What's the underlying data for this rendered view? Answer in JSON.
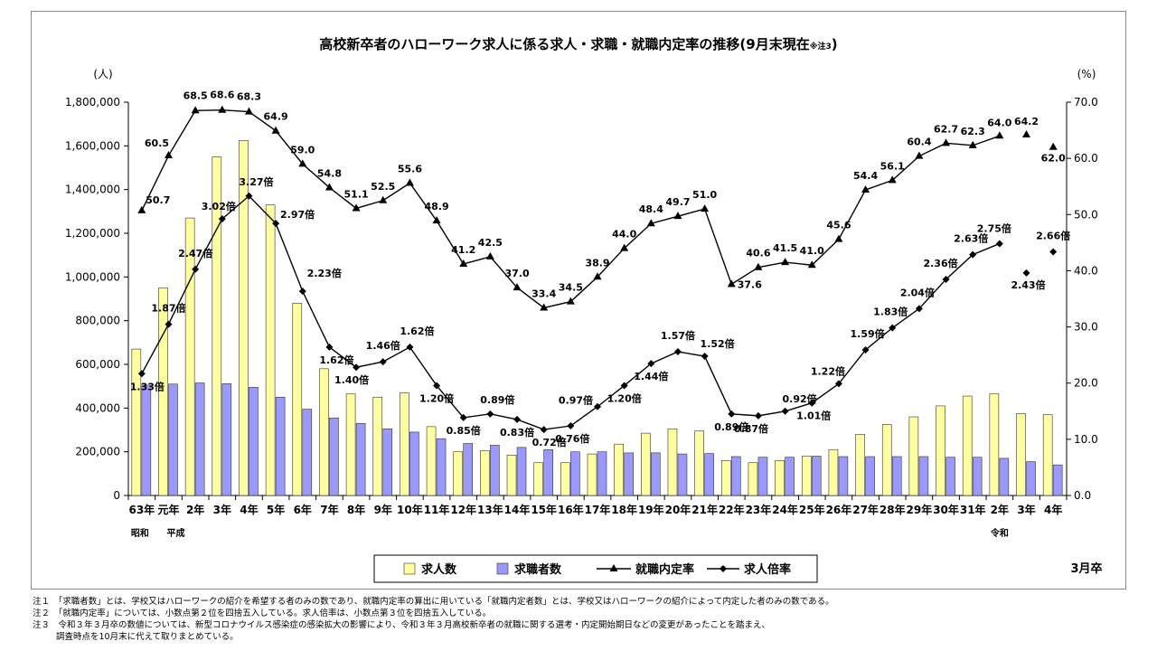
{
  "chart_data": {
    "type": "bar+line",
    "title": "高校新卒者のハローワーク求人に係る求人・求職・就職内定率の推移(9月末現在",
    "title_note": "※注3",
    "title_close": ")",
    "ylabel_left": "(人)",
    "ylabel_right": "(%)",
    "ylim_left": [
      0,
      1800000
    ],
    "ylim_right": [
      0,
      70
    ],
    "yticks_left": [
      "1,800,000",
      "1,600,000",
      "1,400,000",
      "1,200,000",
      "1,000,000",
      "800,000",
      "600,000",
      "400,000",
      "200,000",
      "0"
    ],
    "yticks_right": [
      "70.0",
      "60.0",
      "50.0",
      "40.0",
      "30.0",
      "20.0",
      "10.0",
      "0.0"
    ],
    "categories": [
      "63年",
      "元年",
      "2年",
      "3年",
      "4年",
      "5年",
      "6年",
      "7年",
      "8年",
      "9年",
      "10年",
      "11年",
      "12年",
      "13年",
      "14年",
      "15年",
      "16年",
      "17年",
      "18年",
      "19年",
      "20年",
      "21年",
      "22年",
      "23年",
      "24年",
      "25年",
      "26年",
      "27年",
      "28年",
      "29年",
      "30年",
      "31年",
      "2年",
      "3年",
      "4年"
    ],
    "era_labels": [
      {
        "label": "昭和",
        "at": 0
      },
      {
        "label": "平成",
        "at": 1
      },
      {
        "label": "令和",
        "at": 32
      }
    ],
    "xlabel_right": "3月卒",
    "series": [
      {
        "name": "求人数",
        "kind": "bar",
        "color": "#ffffa0",
        "values": [
          670000,
          950000,
          1270000,
          1550000,
          1625000,
          1330000,
          880000,
          580000,
          465000,
          450000,
          470000,
          315000,
          200000,
          205000,
          185000,
          150000,
          150000,
          190000,
          235000,
          285000,
          305000,
          295000,
          160000,
          150000,
          160000,
          180000,
          210000,
          280000,
          325000,
          360000,
          410000,
          455000,
          465000,
          375000,
          370000
        ]
      },
      {
        "name": "求職者数",
        "kind": "bar",
        "color": "#9999ff",
        "values": [
          505000,
          510000,
          515000,
          512000,
          495000,
          450000,
          395000,
          355000,
          330000,
          305000,
          290000,
          260000,
          238000,
          230000,
          220000,
          210000,
          200000,
          200000,
          195000,
          195000,
          190000,
          192000,
          178000,
          175000,
          175000,
          180000,
          178000,
          178000,
          178000,
          178000,
          175000,
          175000,
          170000,
          155000,
          140000
        ]
      },
      {
        "name": "就職内定率",
        "kind": "line",
        "marker": "triangle",
        "values": [
          50.7,
          60.5,
          68.5,
          68.6,
          68.3,
          64.9,
          59.0,
          54.8,
          51.1,
          52.5,
          55.6,
          48.9,
          41.2,
          42.5,
          37.0,
          33.4,
          34.5,
          38.9,
          44.0,
          48.4,
          49.7,
          51.0,
          37.6,
          40.6,
          41.5,
          41.0,
          45.6,
          54.4,
          56.1,
          60.4,
          62.7,
          62.3,
          64.0,
          64.2,
          62.0
        ],
        "labels": [
          "50.7",
          "60.5",
          "68.5",
          "68.6",
          "68.3",
          "64.9",
          "59.0",
          "54.8",
          "51.1",
          "52.5",
          "55.6",
          "48.9",
          "41.2",
          "42.5",
          "37.0",
          "33.4",
          "34.5",
          "38.9",
          "44.0",
          "48.4",
          "49.7",
          "51.0",
          "37.6",
          "40.6",
          "41.5",
          "41.0",
          "45.6",
          "54.4",
          "56.1",
          "60.4",
          "62.7",
          "62.3",
          "64.0",
          "64.2",
          "62.0"
        ]
      },
      {
        "name": "求人倍率",
        "kind": "line",
        "marker": "diamond",
        "values": [
          1.33,
          1.87,
          2.47,
          3.02,
          3.27,
          2.97,
          2.23,
          1.62,
          1.4,
          1.46,
          1.62,
          1.2,
          0.85,
          0.89,
          0.83,
          0.72,
          0.76,
          0.97,
          1.2,
          1.44,
          1.57,
          1.52,
          0.89,
          0.87,
          0.92,
          1.01,
          1.22,
          1.59,
          1.83,
          2.04,
          2.36,
          2.63,
          2.75,
          2.43,
          2.66
        ],
        "labels": [
          "1.33倍",
          "1.87倍",
          "2.47倍",
          "3.02倍",
          "3.27倍",
          "2.97倍",
          "2.23倍",
          "1.62倍",
          "1.40倍",
          "1.46倍",
          "1.62倍",
          "1.20倍",
          "0.85倍",
          "0.89倍",
          "0.83倍",
          "0.72倍",
          "0.76倍",
          "0.97倍",
          "1.20倍",
          "1.44倍",
          "1.57倍",
          "1.52倍",
          "0.89倍",
          "0.87倍",
          "0.92倍",
          "1.01倍",
          "1.22倍",
          "1.59倍",
          "1.83倍",
          "2.04倍",
          "2.36倍",
          "2.63倍",
          "2.75倍",
          "2.43倍",
          "2.66倍"
        ]
      }
    ],
    "legend": [
      "求人数",
      "求職者数",
      "就職内定率",
      "求人倍率"
    ],
    "legend_position": "bottom"
  },
  "notes": [
    "注１　「求職者数」とは、学校又はハローワークの紹介を希望する者のみの数であり、就職内定率の算出に用いている「就職内定者数」とは、学校又はハローワークの紹介によって内定した者のみの数である。",
    "注２　「就職内定率」については、小数点第２位を四捨五入している。求人倍率は、小数点第３位を四捨五入している。",
    "注３　令和３年３月卒の数値については、新型コロナウイルス感染症の感染拡大の影響により、令和３年３月高校新卒者の就職に関する選考・内定開始期日などの変更があったことを踏まえ、",
    "調査時点を10月末に代えて取りまとめている。"
  ]
}
